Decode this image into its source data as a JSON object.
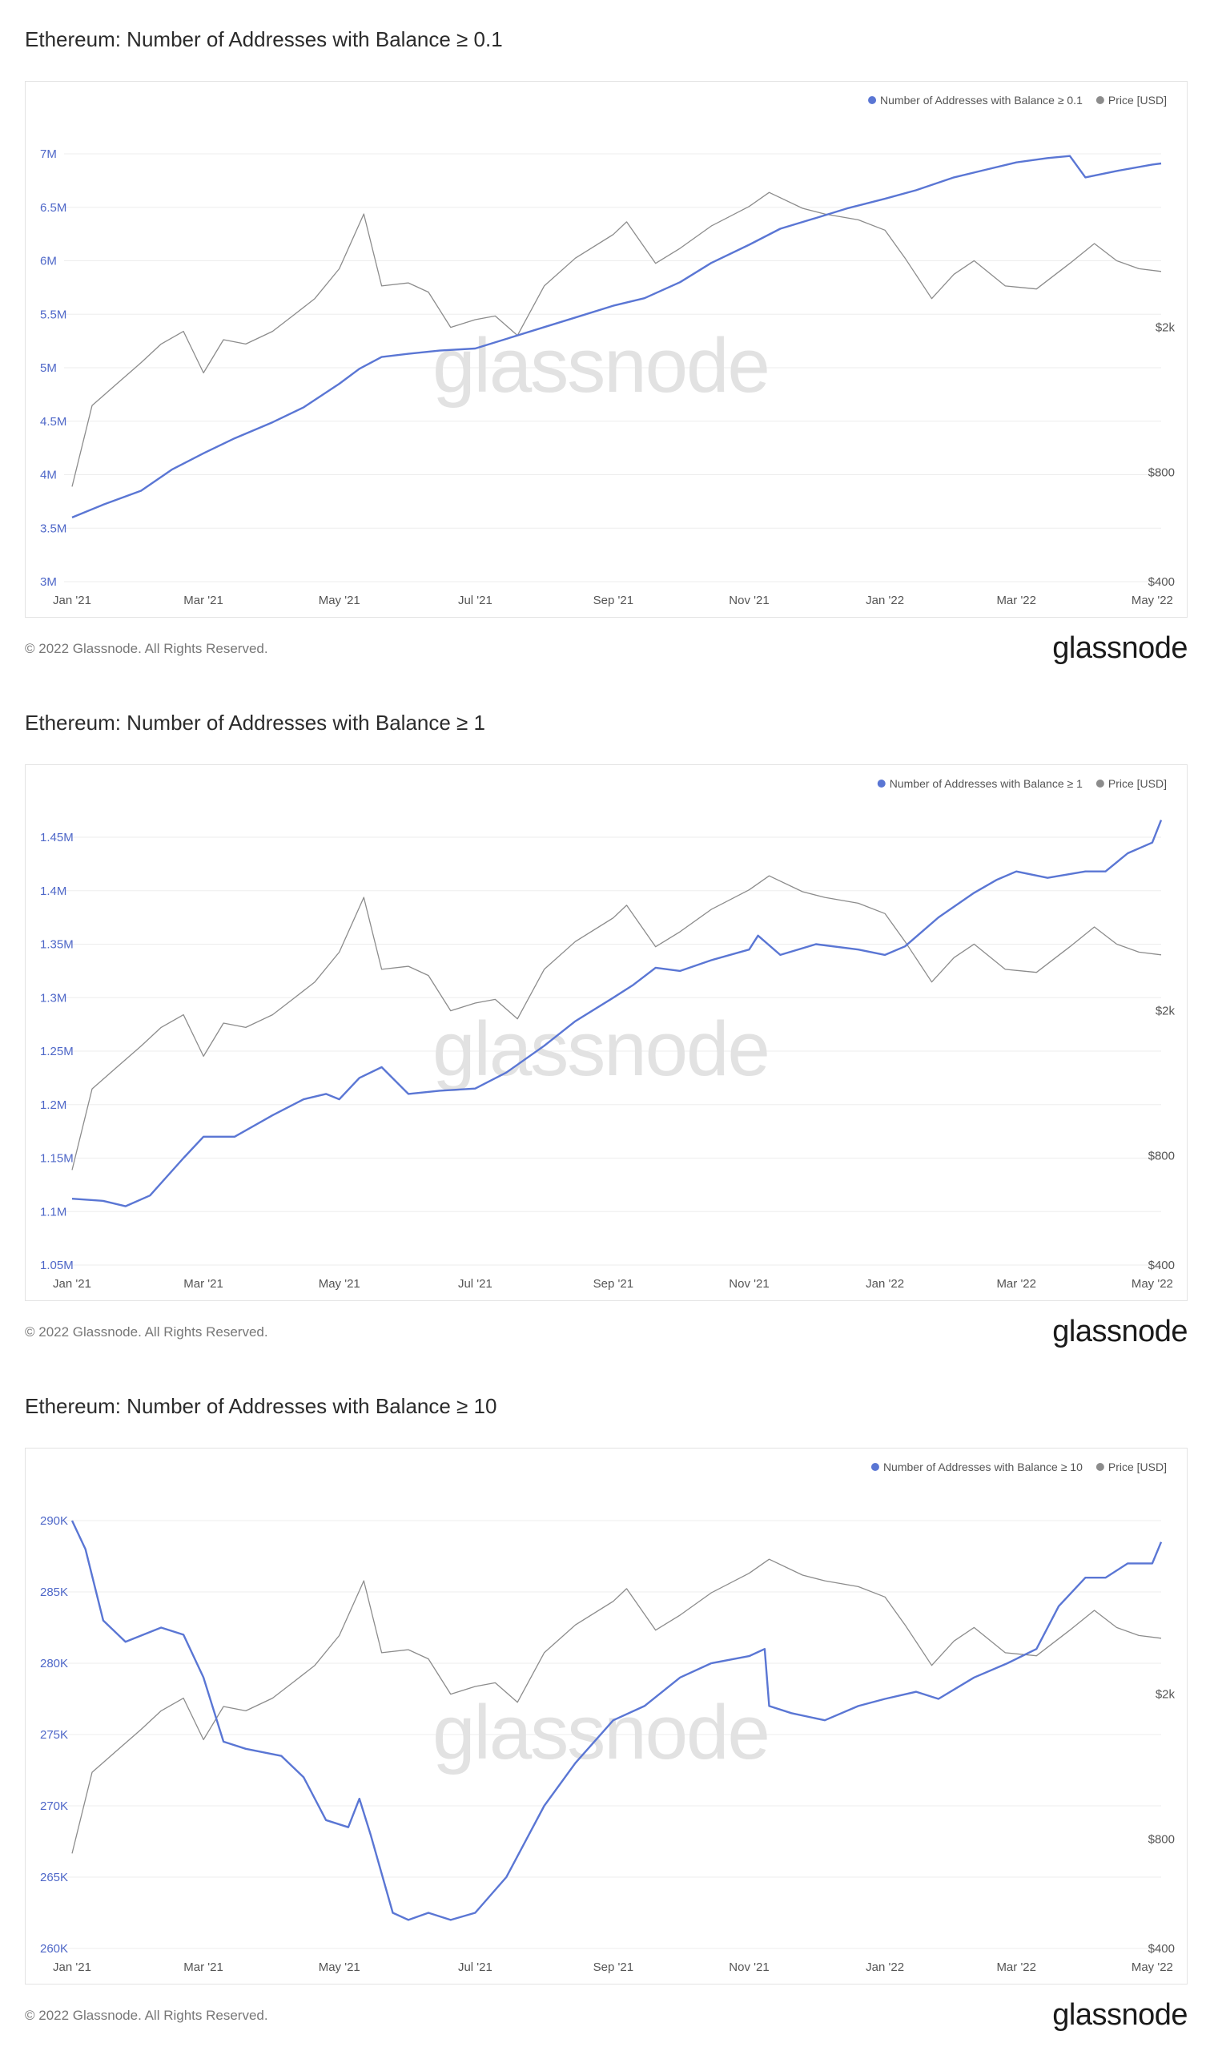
{
  "footer": "© 2022 Glassnode. All Rights Reserved.",
  "logo": "glassnode",
  "watermark": "glassnode",
  "colors": {
    "address_line": "#5a76d4",
    "price_line": "#8c8c8c",
    "grid": "#ededed"
  },
  "chart_data": [
    {
      "type": "line",
      "title": "Ethereum: Number of Addresses with Balance ≥ 0.1",
      "legend": [
        "Number of Addresses with Balance ≥ 0.1",
        "Price [USD]"
      ],
      "legend_position": "top-right",
      "x_ticks": [
        "Jan '21",
        "Mar '21",
        "May '21",
        "Jul '21",
        "Sep '21",
        "Nov '21",
        "Jan '22",
        "Mar '22",
        "May '22"
      ],
      "y_ticks": [
        "3M",
        "3.5M",
        "4M",
        "4.5M",
        "5M",
        "5.5M",
        "6M",
        "6.5M",
        "7M"
      ],
      "y_tick_values": [
        3000000,
        3500000,
        4000000,
        4500000,
        5000000,
        5500000,
        6000000,
        6500000,
        7000000
      ],
      "ylim": [
        3000000,
        7000000
      ],
      "right_ticks": [
        "$400",
        "$800",
        "$2k"
      ],
      "right_tick_values": [
        400,
        800,
        2000
      ],
      "right_scale": "log",
      "series": [
        {
          "name": "Number of Addresses with Balance ≥ 0.1",
          "axis": "left",
          "x": [
            "2021-01-01",
            "2021-01-15",
            "2021-02-01",
            "2021-02-15",
            "2021-03-01",
            "2021-03-15",
            "2021-04-01",
            "2021-04-15",
            "2021-05-01",
            "2021-05-10",
            "2021-05-20",
            "2021-06-01",
            "2021-06-15",
            "2021-07-01",
            "2021-07-15",
            "2021-08-01",
            "2021-08-15",
            "2021-09-01",
            "2021-09-15",
            "2021-10-01",
            "2021-10-15",
            "2021-11-01",
            "2021-11-15",
            "2021-12-01",
            "2021-12-15",
            "2022-01-01",
            "2022-01-15",
            "2022-02-01",
            "2022-02-15",
            "2022-03-01",
            "2022-03-15",
            "2022-03-25",
            "2022-04-01",
            "2022-04-15",
            "2022-05-01",
            "2022-05-05"
          ],
          "y": [
            3600000,
            3720000,
            3850000,
            4050000,
            4200000,
            4340000,
            4490000,
            4630000,
            4850000,
            4990000,
            5100000,
            5130000,
            5160000,
            5180000,
            5270000,
            5380000,
            5470000,
            5580000,
            5650000,
            5800000,
            5980000,
            6150000,
            6300000,
            6400000,
            6490000,
            6580000,
            6660000,
            6780000,
            6850000,
            6920000,
            6960000,
            6980000,
            6780000,
            6840000,
            6900000,
            6910000
          ]
        },
        {
          "name": "Price [USD]",
          "axis": "right",
          "x": [
            "2021-01-01",
            "2021-01-10",
            "2021-01-20",
            "2021-02-01",
            "2021-02-10",
            "2021-02-20",
            "2021-03-01",
            "2021-03-10",
            "2021-03-20",
            "2021-04-01",
            "2021-04-10",
            "2021-04-20",
            "2021-05-01",
            "2021-05-12",
            "2021-05-20",
            "2021-06-01",
            "2021-06-10",
            "2021-06-20",
            "2021-07-01",
            "2021-07-10",
            "2021-07-20",
            "2021-08-01",
            "2021-08-15",
            "2021-09-01",
            "2021-09-07",
            "2021-09-20",
            "2021-10-01",
            "2021-10-15",
            "2021-11-01",
            "2021-11-10",
            "2021-11-25",
            "2021-12-05",
            "2021-12-20",
            "2022-01-01",
            "2022-01-10",
            "2022-01-22",
            "2022-02-01",
            "2022-02-10",
            "2022-02-24",
            "2022-03-10",
            "2022-03-25",
            "2022-04-05",
            "2022-04-15",
            "2022-04-25",
            "2022-05-05"
          ],
          "y": [
            730,
            1220,
            1380,
            1600,
            1800,
            1950,
            1500,
            1850,
            1800,
            1950,
            2150,
            2400,
            2900,
            4100,
            2600,
            2650,
            2500,
            2000,
            2100,
            2150,
            1900,
            2600,
            3100,
            3600,
            3900,
            3000,
            3300,
            3800,
            4300,
            4700,
            4250,
            4100,
            3950,
            3700,
            3100,
            2400,
            2800,
            3050,
            2600,
            2550,
            3000,
            3400,
            3050,
            2900,
            2850
          ]
        }
      ]
    },
    {
      "type": "line",
      "title": "Ethereum: Number of Addresses with Balance ≥ 1",
      "legend": [
        "Number of Addresses with Balance ≥ 1",
        "Price [USD]"
      ],
      "legend_position": "top-right",
      "x_ticks": [
        "Jan '21",
        "Mar '21",
        "May '21",
        "Jul '21",
        "Sep '21",
        "Nov '21",
        "Jan '22",
        "Mar '22",
        "May '22"
      ],
      "y_ticks": [
        "1.05M",
        "1.1M",
        "1.15M",
        "1.2M",
        "1.25M",
        "1.3M",
        "1.35M",
        "1.4M",
        "1.45M"
      ],
      "y_tick_values": [
        1050000,
        1100000,
        1150000,
        1200000,
        1250000,
        1300000,
        1350000,
        1400000,
        1450000
      ],
      "ylim": [
        1050000,
        1450000
      ],
      "right_ticks": [
        "$400",
        "$800",
        "$2k"
      ],
      "right_tick_values": [
        400,
        800,
        2000
      ],
      "right_scale": "log",
      "series": [
        {
          "name": "Number of Addresses with Balance ≥ 1",
          "axis": "left",
          "x": [
            "2021-01-01",
            "2021-01-15",
            "2021-01-25",
            "2021-02-05",
            "2021-02-20",
            "2021-03-01",
            "2021-03-15",
            "2021-04-01",
            "2021-04-15",
            "2021-04-25",
            "2021-05-01",
            "2021-05-10",
            "2021-05-20",
            "2021-06-01",
            "2021-06-15",
            "2021-07-01",
            "2021-07-15",
            "2021-08-01",
            "2021-08-15",
            "2021-09-01",
            "2021-09-10",
            "2021-09-20",
            "2021-10-01",
            "2021-10-15",
            "2021-11-01",
            "2021-11-05",
            "2021-11-15",
            "2021-12-01",
            "2021-12-20",
            "2022-01-01",
            "2022-01-10",
            "2022-01-25",
            "2022-02-10",
            "2022-02-20",
            "2022-03-01",
            "2022-03-15",
            "2022-04-01",
            "2022-04-10",
            "2022-04-20",
            "2022-05-01",
            "2022-05-05"
          ],
          "y": [
            1112000,
            1110000,
            1105000,
            1115000,
            1150000,
            1170000,
            1170000,
            1190000,
            1205000,
            1210000,
            1205000,
            1225000,
            1235000,
            1210000,
            1213000,
            1215000,
            1230000,
            1255000,
            1278000,
            1300000,
            1312000,
            1328000,
            1325000,
            1335000,
            1345000,
            1358000,
            1340000,
            1350000,
            1345000,
            1340000,
            1348000,
            1375000,
            1398000,
            1410000,
            1418000,
            1412000,
            1418000,
            1418000,
            1435000,
            1445000,
            1466000
          ]
        },
        {
          "name": "Price [USD]",
          "axis": "right",
          "x": [
            "2021-01-01",
            "2021-01-10",
            "2021-01-20",
            "2021-02-01",
            "2021-02-10",
            "2021-02-20",
            "2021-03-01",
            "2021-03-10",
            "2021-03-20",
            "2021-04-01",
            "2021-04-10",
            "2021-04-20",
            "2021-05-01",
            "2021-05-12",
            "2021-05-20",
            "2021-06-01",
            "2021-06-10",
            "2021-06-20",
            "2021-07-01",
            "2021-07-10",
            "2021-07-20",
            "2021-08-01",
            "2021-08-15",
            "2021-09-01",
            "2021-09-07",
            "2021-09-20",
            "2021-10-01",
            "2021-10-15",
            "2021-11-01",
            "2021-11-10",
            "2021-11-25",
            "2021-12-05",
            "2021-12-20",
            "2022-01-01",
            "2022-01-10",
            "2022-01-22",
            "2022-02-01",
            "2022-02-10",
            "2022-02-24",
            "2022-03-10",
            "2022-03-25",
            "2022-04-05",
            "2022-04-15",
            "2022-04-25",
            "2022-05-05"
          ],
          "y": [
            730,
            1220,
            1380,
            1600,
            1800,
            1950,
            1500,
            1850,
            1800,
            1950,
            2150,
            2400,
            2900,
            4100,
            2600,
            2650,
            2500,
            2000,
            2100,
            2150,
            1900,
            2600,
            3100,
            3600,
            3900,
            3000,
            3300,
            3800,
            4300,
            4700,
            4250,
            4100,
            3950,
            3700,
            3100,
            2400,
            2800,
            3050,
            2600,
            2550,
            3000,
            3400,
            3050,
            2900,
            2850
          ]
        }
      ]
    },
    {
      "type": "line",
      "title": "Ethereum: Number of Addresses with Balance ≥ 10",
      "legend": [
        "Number of Addresses with Balance ≥ 10",
        "Price [USD]"
      ],
      "legend_position": "top-right",
      "x_ticks": [
        "Jan '21",
        "Mar '21",
        "May '21",
        "Jul '21",
        "Sep '21",
        "Nov '21",
        "Jan '22",
        "Mar '22",
        "May '22"
      ],
      "y_ticks": [
        "260K",
        "265K",
        "270K",
        "275K",
        "280K",
        "285K",
        "290K"
      ],
      "y_tick_values": [
        260000,
        265000,
        270000,
        275000,
        280000,
        285000,
        290000
      ],
      "ylim": [
        260000,
        290000
      ],
      "right_ticks": [
        "$400",
        "$800",
        "$2k"
      ],
      "right_tick_values": [
        400,
        800,
        2000
      ],
      "right_scale": "log",
      "series": [
        {
          "name": "Number of Addresses with Balance ≥ 10",
          "axis": "left",
          "x": [
            "2021-01-01",
            "2021-01-07",
            "2021-01-15",
            "2021-01-25",
            "2021-02-10",
            "2021-02-20",
            "2021-03-01",
            "2021-03-10",
            "2021-03-20",
            "2021-04-05",
            "2021-04-15",
            "2021-04-25",
            "2021-05-05",
            "2021-05-10",
            "2021-05-15",
            "2021-05-25",
            "2021-06-01",
            "2021-06-10",
            "2021-06-20",
            "2021-07-01",
            "2021-07-15",
            "2021-08-01",
            "2021-08-15",
            "2021-09-01",
            "2021-09-15",
            "2021-10-01",
            "2021-10-15",
            "2021-11-01",
            "2021-11-08",
            "2021-11-10",
            "2021-11-20",
            "2021-12-05",
            "2021-12-20",
            "2022-01-01",
            "2022-01-15",
            "2022-01-25",
            "2022-02-10",
            "2022-02-25",
            "2022-03-10",
            "2022-03-20",
            "2022-04-01",
            "2022-04-10",
            "2022-04-20",
            "2022-05-01",
            "2022-05-05"
          ],
          "y": [
            290000,
            288000,
            283000,
            281500,
            282500,
            282000,
            279000,
            274500,
            274000,
            273500,
            272000,
            269000,
            268500,
            270500,
            268000,
            262500,
            262000,
            262500,
            262000,
            262500,
            265000,
            270000,
            273000,
            276000,
            277000,
            279000,
            280000,
            280500,
            281000,
            277000,
            276500,
            276000,
            277000,
            277500,
            278000,
            277500,
            279000,
            280000,
            281000,
            284000,
            286000,
            286000,
            287000,
            287000,
            288500
          ]
        },
        {
          "name": "Price [USD]",
          "axis": "right",
          "x": [
            "2021-01-01",
            "2021-01-10",
            "2021-01-20",
            "2021-02-01",
            "2021-02-10",
            "2021-02-20",
            "2021-03-01",
            "2021-03-10",
            "2021-03-20",
            "2021-04-01",
            "2021-04-10",
            "2021-04-20",
            "2021-05-01",
            "2021-05-12",
            "2021-05-20",
            "2021-06-01",
            "2021-06-10",
            "2021-06-20",
            "2021-07-01",
            "2021-07-10",
            "2021-07-20",
            "2021-08-01",
            "2021-08-15",
            "2021-09-01",
            "2021-09-07",
            "2021-09-20",
            "2021-10-01",
            "2021-10-15",
            "2021-11-01",
            "2021-11-10",
            "2021-11-25",
            "2021-12-05",
            "2021-12-20",
            "2022-01-01",
            "2022-01-10",
            "2022-01-22",
            "2022-02-01",
            "2022-02-10",
            "2022-02-24",
            "2022-03-10",
            "2022-03-25",
            "2022-04-05",
            "2022-04-15",
            "2022-04-25",
            "2022-05-05"
          ],
          "y": [
            730,
            1220,
            1380,
            1600,
            1800,
            1950,
            1500,
            1850,
            1800,
            1950,
            2150,
            2400,
            2900,
            4100,
            2600,
            2650,
            2500,
            2000,
            2100,
            2150,
            1900,
            2600,
            3100,
            3600,
            3900,
            3000,
            3300,
            3800,
            4300,
            4700,
            4250,
            4100,
            3950,
            3700,
            3100,
            2400,
            2800,
            3050,
            2600,
            2550,
            3000,
            3400,
            3050,
            2900,
            2850
          ]
        }
      ]
    }
  ]
}
